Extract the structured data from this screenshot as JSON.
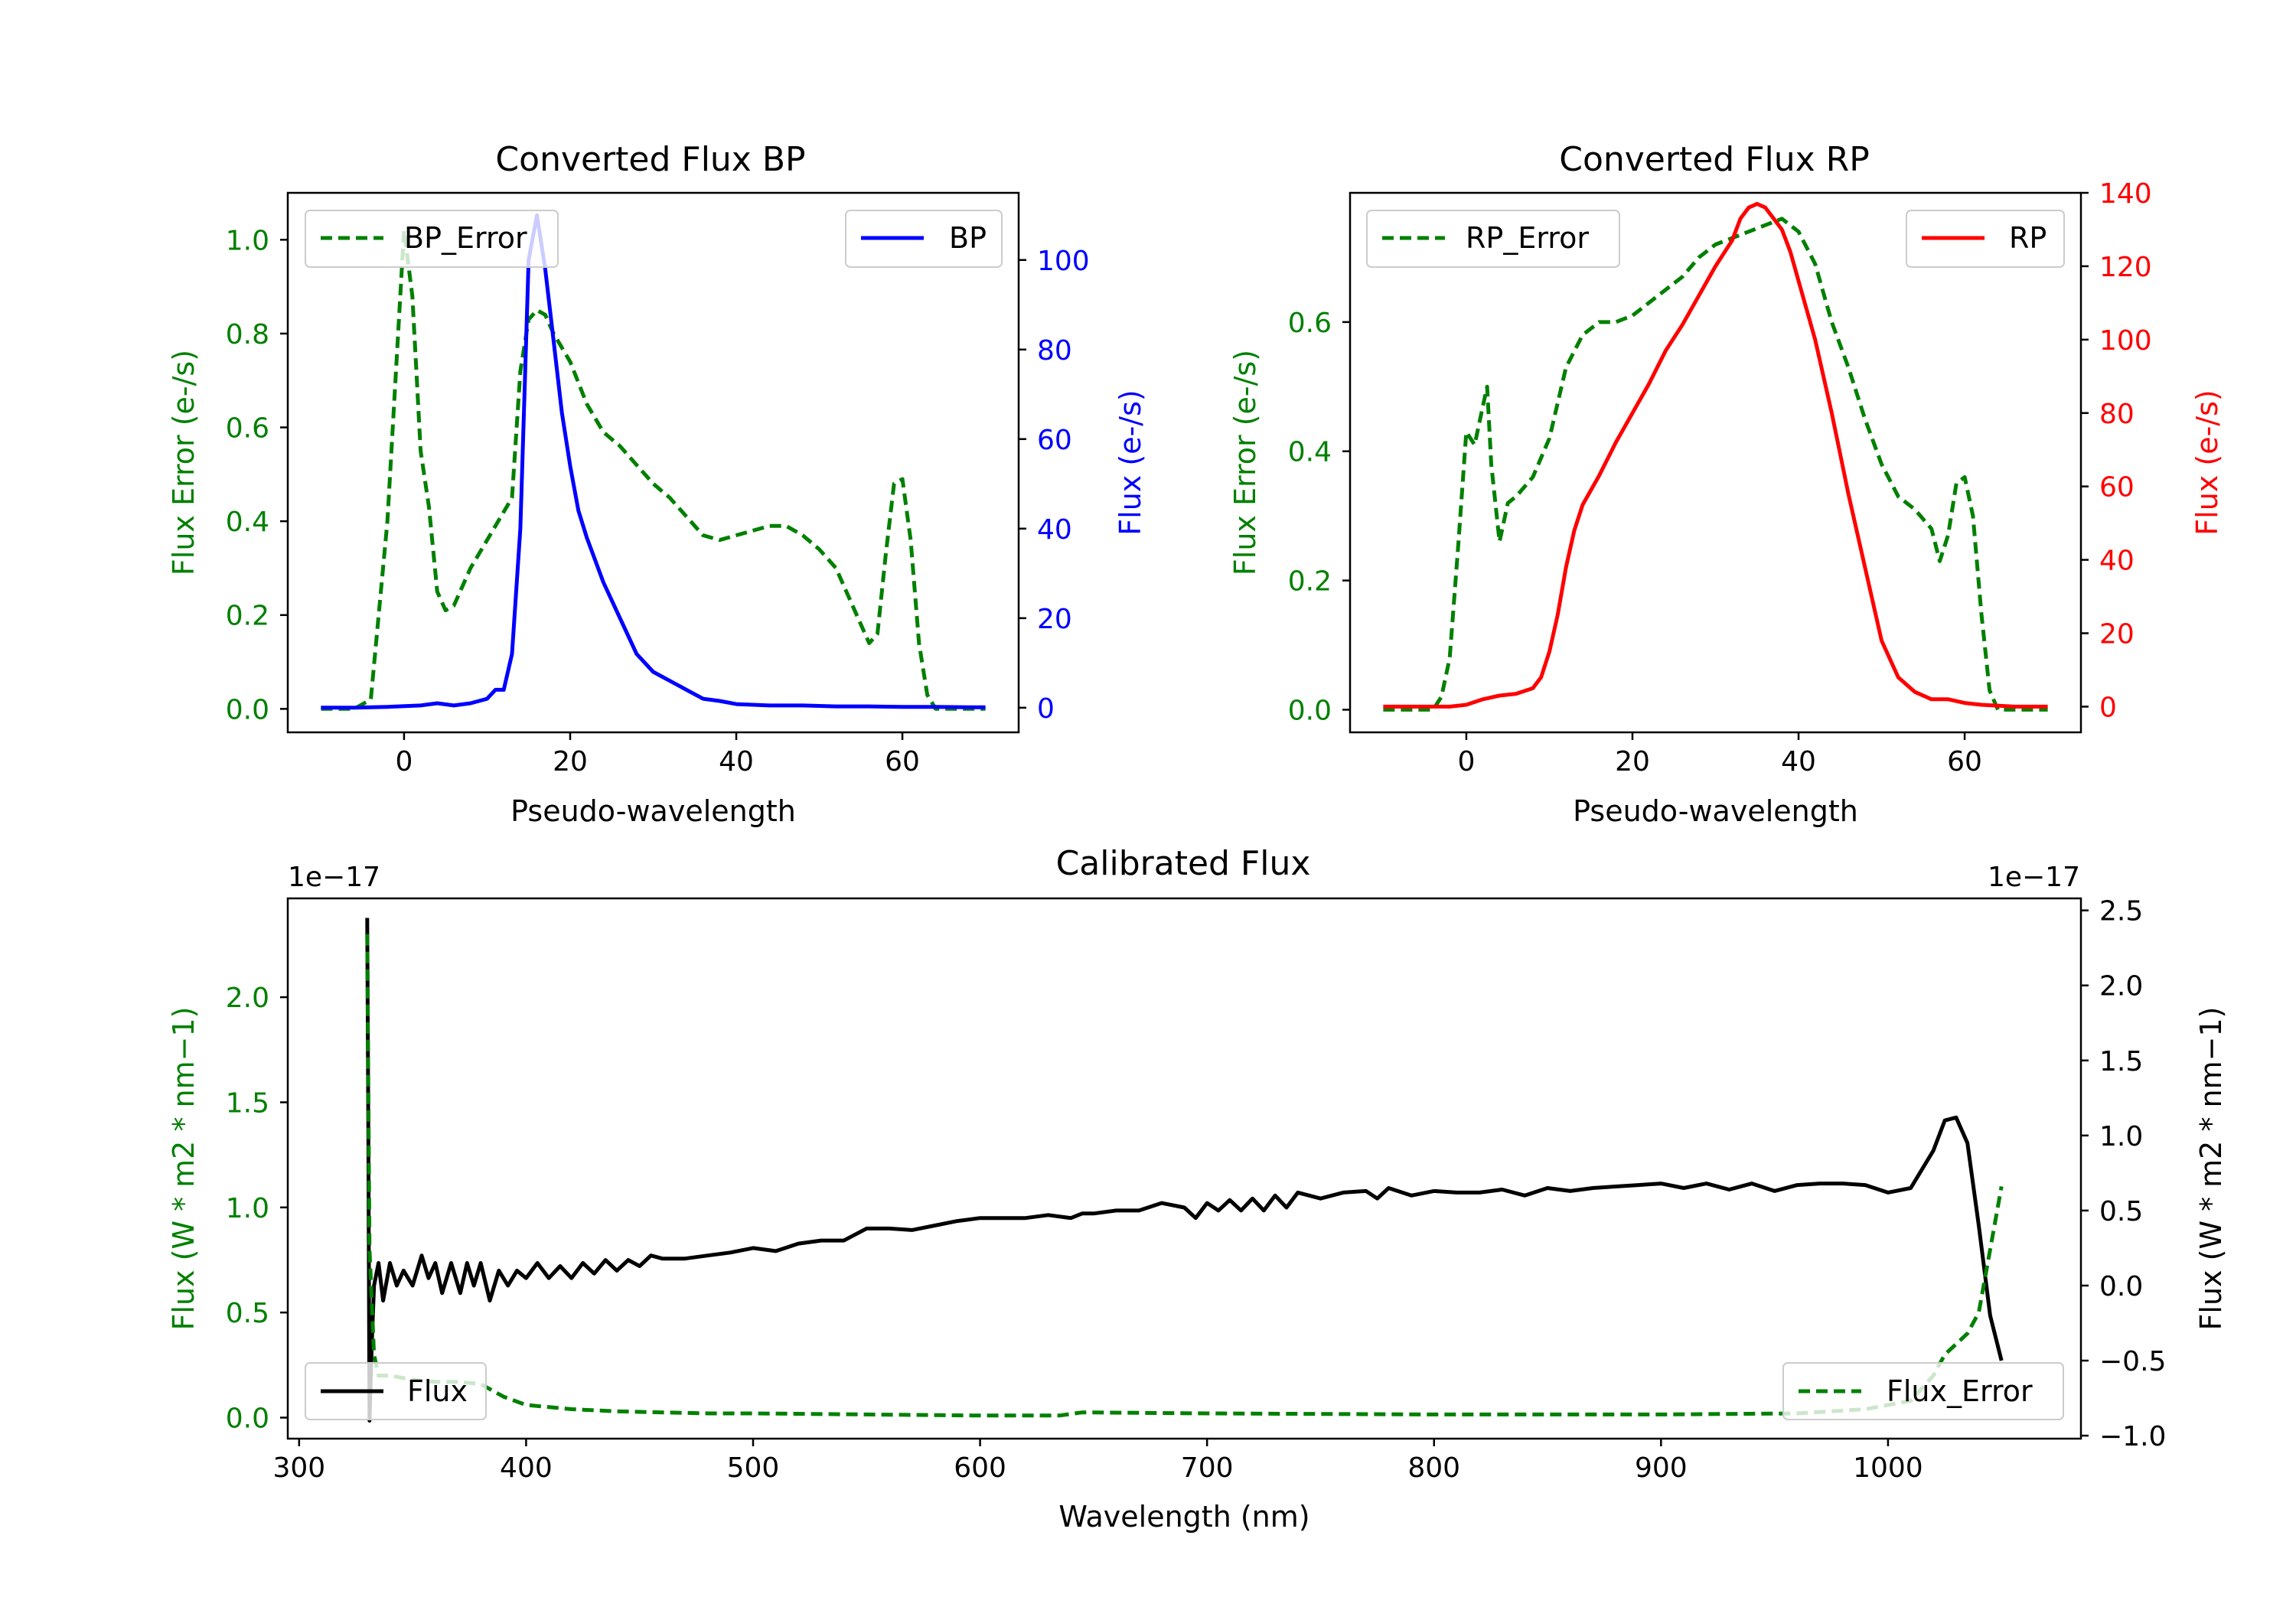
{
  "chart_data": [
    {
      "type": "line",
      "title": "Converted Flux BP",
      "xlabel": "Pseudo-wavelength",
      "xlim": [
        -14,
        74
      ],
      "xticks": [
        0,
        20,
        40,
        60
      ],
      "left_axis": {
        "label": "Flux Error (e-/s)",
        "color": "#008000",
        "ylim": [
          -0.05,
          1.1
        ],
        "ticks": [
          0.0,
          0.2,
          0.4,
          0.6,
          0.8,
          1.0
        ],
        "tick_labels": [
          "0.0",
          "0.2",
          "0.4",
          "0.6",
          "0.8",
          "1.0"
        ]
      },
      "right_axis": {
        "label": "Flux (e-/s)",
        "color": "#0000ff",
        "ylim": [
          -5.5,
          115
        ],
        "ticks": [
          0,
          20,
          40,
          60,
          80,
          100
        ],
        "tick_labels": [
          "0",
          "20",
          "40",
          "60",
          "80",
          "100"
        ]
      },
      "series": [
        {
          "name": "BP_Error",
          "axis": "left",
          "color": "#008000",
          "style": "dashed",
          "x": [
            -10,
            -6,
            -4,
            -2,
            0,
            1,
            2,
            3,
            4,
            5,
            6,
            8,
            10,
            12,
            13,
            14,
            15,
            16,
            17,
            18,
            20,
            22,
            24,
            26,
            28,
            30,
            32,
            34,
            36,
            38,
            40,
            42,
            44,
            46,
            48,
            50,
            52,
            54,
            56,
            57,
            58,
            59,
            60,
            61,
            62,
            63,
            64,
            65,
            66,
            68,
            70
          ],
          "y": [
            0.0,
            0.0,
            0.02,
            0.4,
            1.02,
            0.88,
            0.55,
            0.43,
            0.25,
            0.21,
            0.22,
            0.3,
            0.36,
            0.42,
            0.45,
            0.72,
            0.83,
            0.85,
            0.84,
            0.8,
            0.74,
            0.65,
            0.59,
            0.56,
            0.52,
            0.48,
            0.45,
            0.41,
            0.37,
            0.36,
            0.37,
            0.38,
            0.39,
            0.39,
            0.37,
            0.34,
            0.3,
            0.22,
            0.14,
            0.16,
            0.33,
            0.48,
            0.49,
            0.36,
            0.14,
            0.03,
            0.0,
            0.0,
            0.0,
            0.0,
            0.0
          ]
        },
        {
          "name": "BP",
          "axis": "right",
          "color": "#0000ff",
          "style": "solid",
          "x": [
            -10,
            -6,
            -2,
            2,
            4,
            6,
            8,
            10,
            11,
            12,
            13,
            14,
            15,
            16,
            17,
            18,
            19,
            20,
            21,
            22,
            24,
            26,
            28,
            30,
            32,
            34,
            36,
            38,
            40,
            44,
            48,
            52,
            56,
            60,
            64,
            68,
            70
          ],
          "y": [
            0,
            0,
            0.2,
            0.5,
            1,
            0.5,
            1,
            2,
            4,
            4,
            12,
            40,
            100,
            110,
            98,
            82,
            66,
            54,
            44,
            38,
            28,
            20,
            12,
            8,
            6,
            4,
            2,
            1.5,
            0.8,
            0.5,
            0.5,
            0.3,
            0.3,
            0.2,
            0.2,
            0.1,
            0.1
          ]
        }
      ],
      "legends": [
        {
          "items": [
            "BP_Error"
          ],
          "location": "upper left"
        },
        {
          "items": [
            "BP"
          ],
          "location": "upper right"
        }
      ]
    },
    {
      "type": "line",
      "title": "Converted Flux RP",
      "xlabel": "Pseudo-wavelength",
      "xlim": [
        -14,
        74
      ],
      "xticks": [
        0,
        20,
        40,
        60
      ],
      "left_axis": {
        "label": "Flux Error (e-/s)",
        "color": "#008000",
        "ylim": [
          -0.035,
          0.8
        ],
        "ticks": [
          0.0,
          0.2,
          0.4,
          0.6
        ],
        "tick_labels": [
          "0.0",
          "0.2",
          "0.4",
          "0.6"
        ]
      },
      "right_axis": {
        "label": "Flux (e-/s)",
        "color": "#ff0000",
        "ylim": [
          -7,
          140
        ],
        "ticks": [
          0,
          20,
          40,
          60,
          80,
          100,
          120,
          140
        ],
        "tick_labels": [
          "0",
          "20",
          "40",
          "60",
          "80",
          "100",
          "120",
          "140"
        ]
      },
      "series": [
        {
          "name": "RP_Error",
          "axis": "left",
          "color": "#008000",
          "style": "dashed",
          "x": [
            -10,
            -4,
            -3,
            -2,
            -1,
            0,
            1,
            2,
            2.5,
            3,
            4,
            5,
            6,
            8,
            10,
            12,
            14,
            16,
            18,
            20,
            22,
            24,
            26,
            28,
            30,
            32,
            34,
            36,
            38,
            40,
            42,
            44,
            46,
            48,
            50,
            52,
            54,
            56,
            57,
            58,
            59,
            60,
            61,
            62,
            63,
            64,
            66,
            68,
            70
          ],
          "y": [
            0.0,
            0.0,
            0.02,
            0.08,
            0.25,
            0.43,
            0.41,
            0.47,
            0.5,
            0.38,
            0.26,
            0.32,
            0.33,
            0.36,
            0.42,
            0.53,
            0.58,
            0.6,
            0.6,
            0.61,
            0.63,
            0.65,
            0.67,
            0.7,
            0.72,
            0.73,
            0.74,
            0.75,
            0.76,
            0.74,
            0.69,
            0.6,
            0.53,
            0.45,
            0.38,
            0.33,
            0.31,
            0.28,
            0.23,
            0.27,
            0.35,
            0.36,
            0.3,
            0.15,
            0.03,
            0.0,
            0.0,
            0.0,
            0.0
          ]
        },
        {
          "name": "RP",
          "axis": "right",
          "color": "#ff0000",
          "style": "solid",
          "x": [
            -10,
            -2,
            0,
            2,
            4,
            6,
            8,
            9,
            10,
            11,
            12,
            13,
            14,
            16,
            18,
            20,
            22,
            24,
            26,
            28,
            30,
            32,
            33,
            34,
            35,
            36,
            37,
            38,
            39,
            40,
            42,
            44,
            46,
            48,
            50,
            52,
            54,
            56,
            58,
            60,
            62,
            66,
            70
          ],
          "y": [
            0,
            0,
            0.5,
            2,
            3,
            3.5,
            5,
            8,
            15,
            25,
            38,
            48,
            55,
            63,
            72,
            80,
            88,
            97,
            104,
            112,
            120,
            127,
            133,
            136,
            137,
            136,
            133,
            130,
            124,
            116,
            100,
            80,
            58,
            38,
            18,
            8,
            4,
            2,
            2,
            1,
            0.5,
            0,
            0
          ]
        }
      ],
      "legends": [
        {
          "items": [
            "RP_Error"
          ],
          "location": "upper left"
        },
        {
          "items": [
            "RP"
          ],
          "location": "upper right"
        }
      ]
    },
    {
      "type": "line",
      "title": "Calibrated Flux",
      "xlabel": "Wavelength (nm)",
      "xlim": [
        295,
        1085
      ],
      "xticks": [
        300,
        400,
        500,
        600,
        700,
        800,
        900,
        1000
      ],
      "left_axis": {
        "label": "Flux (W * m2 * nm−1)",
        "color": "#008000",
        "ylim": [
          -0.1,
          2.47
        ],
        "ticks": [
          0.0,
          0.5,
          1.0,
          1.5,
          2.0
        ],
        "tick_labels": [
          "0.0",
          "0.5",
          "1.0",
          "1.5",
          "2.0"
        ],
        "offset_text": "1e−17"
      },
      "right_axis": {
        "label": "Flux (W * m2 * nm−1)",
        "color": "#000000",
        "ylim": [
          -1.02,
          2.58
        ],
        "ticks": [
          -1.0,
          -0.5,
          0.0,
          0.5,
          1.0,
          1.5,
          2.0,
          2.5
        ],
        "tick_labels": [
          "−1.0",
          "−0.5",
          "0.0",
          "0.5",
          "1.0",
          "1.5",
          "2.0",
          "2.5"
        ],
        "offset_text": "1e−17"
      },
      "series": [
        {
          "name": "Flux",
          "axis": "right",
          "color": "#000000",
          "style": "solid",
          "x": [
            330,
            330.5,
            331,
            332,
            333,
            335,
            337,
            340,
            343,
            346,
            350,
            354,
            357,
            360,
            363,
            367,
            371,
            374,
            377,
            380,
            384,
            388,
            392,
            396,
            400,
            405,
            410,
            415,
            420,
            425,
            430,
            435,
            440,
            445,
            450,
            455,
            460,
            470,
            480,
            490,
            500,
            510,
            520,
            530,
            540,
            550,
            560,
            570,
            580,
            590,
            600,
            610,
            620,
            630,
            640,
            645,
            650,
            660,
            670,
            680,
            690,
            695,
            700,
            705,
            710,
            715,
            720,
            725,
            730,
            735,
            740,
            750,
            760,
            770,
            775,
            780,
            790,
            800,
            810,
            820,
            830,
            840,
            850,
            860,
            870,
            880,
            890,
            900,
            910,
            920,
            930,
            940,
            950,
            960,
            970,
            980,
            990,
            1000,
            1010,
            1020,
            1025,
            1030,
            1035,
            1040,
            1045,
            1050
          ],
          "y": [
            2.45,
            1.0,
            -0.9,
            -0.4,
            0.0,
            0.15,
            -0.1,
            0.15,
            0.0,
            0.1,
            0.0,
            0.2,
            0.05,
            0.15,
            -0.05,
            0.15,
            -0.05,
            0.15,
            0.0,
            0.15,
            -0.1,
            0.1,
            0.0,
            0.1,
            0.05,
            0.15,
            0.05,
            0.13,
            0.05,
            0.15,
            0.08,
            0.17,
            0.1,
            0.17,
            0.13,
            0.2,
            0.18,
            0.18,
            0.2,
            0.22,
            0.25,
            0.23,
            0.28,
            0.3,
            0.3,
            0.38,
            0.38,
            0.37,
            0.4,
            0.43,
            0.45,
            0.45,
            0.45,
            0.47,
            0.45,
            0.48,
            0.48,
            0.5,
            0.5,
            0.55,
            0.52,
            0.45,
            0.55,
            0.5,
            0.57,
            0.5,
            0.58,
            0.5,
            0.6,
            0.52,
            0.62,
            0.58,
            0.62,
            0.63,
            0.58,
            0.65,
            0.6,
            0.63,
            0.62,
            0.62,
            0.64,
            0.6,
            0.65,
            0.63,
            0.65,
            0.66,
            0.67,
            0.68,
            0.65,
            0.68,
            0.64,
            0.68,
            0.63,
            0.67,
            0.68,
            0.68,
            0.67,
            0.62,
            0.65,
            0.9,
            1.1,
            1.12,
            0.95,
            0.4,
            -0.2,
            -0.5
          ]
        },
        {
          "name": "Flux_Error",
          "axis": "left",
          "color": "#008000",
          "style": "dashed",
          "x": [
            330,
            331,
            333,
            335,
            340,
            350,
            360,
            370,
            380,
            390,
            400,
            420,
            440,
            460,
            480,
            500,
            550,
            600,
            635,
            645,
            700,
            800,
            900,
            960,
            990,
            1010,
            1020,
            1025,
            1030,
            1035,
            1040,
            1045,
            1050
          ],
          "y": [
            2.3,
            0.8,
            0.3,
            0.2,
            0.2,
            0.18,
            0.17,
            0.17,
            0.16,
            0.1,
            0.06,
            0.04,
            0.03,
            0.025,
            0.02,
            0.02,
            0.015,
            0.01,
            0.01,
            0.025,
            0.02,
            0.015,
            0.015,
            0.02,
            0.04,
            0.08,
            0.2,
            0.3,
            0.35,
            0.4,
            0.5,
            0.8,
            1.1
          ]
        }
      ],
      "legends": [
        {
          "items": [
            "Flux"
          ],
          "location": "lower left"
        },
        {
          "items": [
            "Flux_Error"
          ],
          "location": "lower right"
        }
      ]
    }
  ]
}
